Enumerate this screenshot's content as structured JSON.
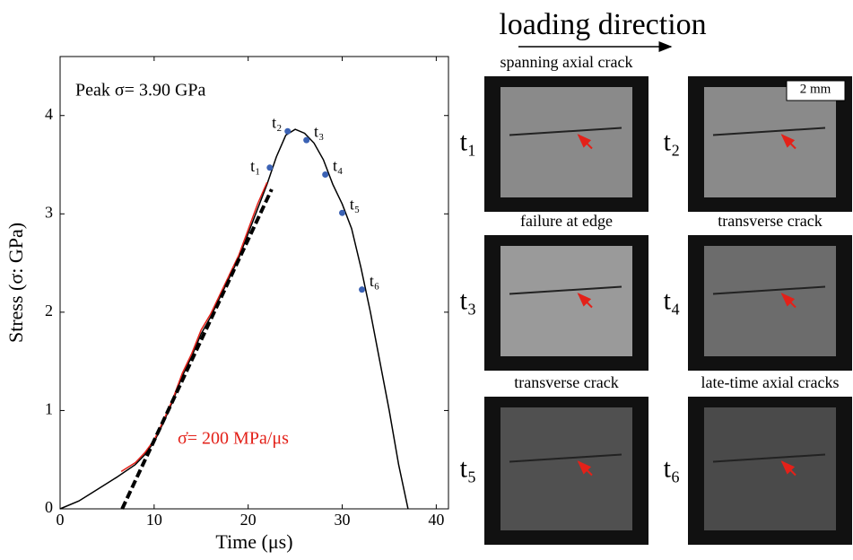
{
  "chart_data": {
    "type": "line",
    "xlabel": "Time (μs)",
    "ylabel": "Stress (σ: GPa)",
    "xlim": [
      0,
      41.3
    ],
    "ylim": [
      0,
      4.6
    ],
    "xticks": [
      0,
      10,
      20,
      30,
      40
    ],
    "yticks": [
      0,
      1,
      2,
      3,
      4
    ],
    "annotations": [
      "Peak σ= 3.90 GPa",
      "σ̇=  200 MPa/μs"
    ],
    "annotation_colors": [
      "#000000",
      "#e32119"
    ],
    "series": [
      {
        "color": "#000000",
        "x": [
          0,
          2,
          4,
          6,
          8,
          9,
          10,
          11,
          12,
          13,
          14,
          15,
          16,
          17,
          18,
          19,
          20,
          21,
          22,
          23,
          24,
          25,
          26,
          27,
          28,
          29,
          30,
          31,
          32,
          33,
          34,
          35,
          36,
          37
        ],
        "values": [
          0,
          0.08,
          0.2,
          0.32,
          0.45,
          0.55,
          0.68,
          0.88,
          1.1,
          1.35,
          1.55,
          1.78,
          1.95,
          2.15,
          2.35,
          2.55,
          2.8,
          3.05,
          3.3,
          3.58,
          3.8,
          3.86,
          3.82,
          3.72,
          3.55,
          3.3,
          3.1,
          2.85,
          2.45,
          2.0,
          1.5,
          1.0,
          0.45,
          0
        ]
      },
      {
        "color": "#e32119",
        "x": [
          6.5,
          8,
          9,
          10,
          11,
          12,
          13,
          14,
          15,
          16,
          17,
          18,
          19,
          20,
          21,
          22
        ],
        "values": [
          0.38,
          0.47,
          0.57,
          0.7,
          0.9,
          1.12,
          1.38,
          1.58,
          1.82,
          1.98,
          2.18,
          2.38,
          2.58,
          2.84,
          3.1,
          3.32
        ]
      },
      {
        "color": "#000000",
        "dashed": true,
        "x": [
          6.6,
          22.5
        ],
        "values": [
          0,
          3.25
        ]
      }
    ],
    "points": {
      "color": "#3b62b4",
      "labels": [
        "t₁",
        "t₂",
        "t₃",
        "t₄",
        "t₅",
        "t₆"
      ],
      "x": [
        22.3,
        24.2,
        26.2,
        28.2,
        30.0,
        32.1
      ],
      "values": [
        3.47,
        3.84,
        3.75,
        3.4,
        3.01,
        2.23
      ]
    }
  },
  "images": {
    "title": "loading direction",
    "scale_bar": "2 mm",
    "panels": [
      {
        "label": "t₁",
        "caption": "spanning axial crack"
      },
      {
        "label": "t₂"
      },
      {
        "label": "t₃",
        "caption": "failure at edge"
      },
      {
        "label": "t₄",
        "caption": "transverse crack"
      },
      {
        "label": "t₅",
        "caption": "transverse crack"
      },
      {
        "label": "t₆",
        "caption": "late-time axial cracks"
      }
    ]
  }
}
